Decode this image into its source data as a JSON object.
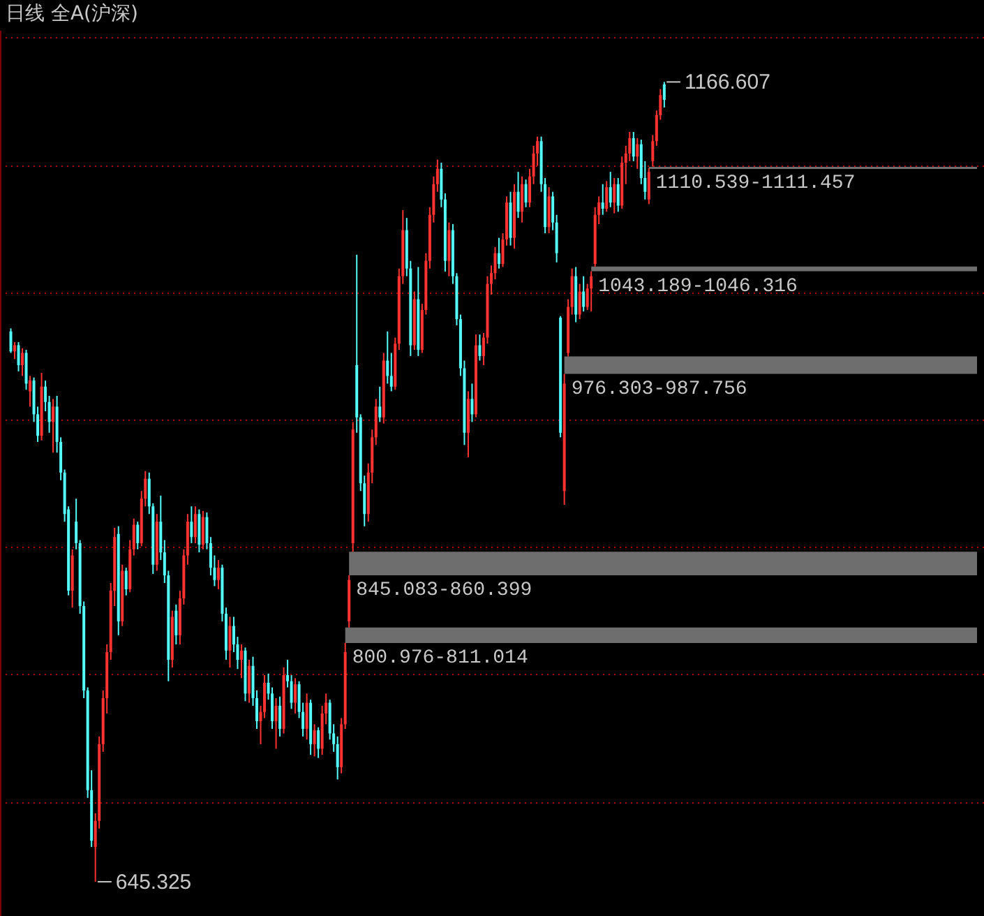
{
  "chart_data": {
    "type": "candlestick",
    "title": "日线 全A(沪深)",
    "categories": [
      null,
      null,
      null,
      null,
      null,
      null,
      null,
      null,
      null,
      null,
      null,
      null,
      null,
      null,
      null,
      null,
      null,
      null,
      null,
      null,
      null,
      null,
      null,
      null,
      null,
      null,
      null,
      null,
      null,
      null,
      null,
      null,
      null,
      null,
      null,
      null,
      null,
      null,
      null,
      null,
      null,
      null,
      null,
      null,
      null,
      null,
      null,
      null,
      null,
      null,
      null,
      null,
      null,
      null,
      null,
      null,
      null,
      null,
      null,
      null,
      null,
      null,
      null,
      null,
      null,
      null,
      null,
      null,
      null,
      null,
      null,
      null,
      null,
      null,
      null,
      null,
      null,
      null,
      null,
      null,
      null,
      null,
      null,
      null,
      null,
      null,
      null,
      null,
      null,
      null,
      null,
      null,
      null,
      null,
      null,
      null,
      null,
      null,
      null,
      null,
      null,
      null,
      null,
      null,
      null,
      null,
      null,
      null,
      null,
      null,
      null,
      null,
      null,
      null,
      null,
      null,
      null,
      null,
      null,
      null,
      null,
      null,
      null,
      null,
      null,
      null,
      null,
      null,
      null,
      null,
      null,
      null,
      null,
      null,
      null,
      null,
      null,
      null,
      null,
      null,
      null,
      null,
      null,
      null,
      null,
      null,
      null,
      null,
      null,
      null,
      null,
      null,
      null,
      null,
      null,
      null,
      null,
      null,
      null,
      null,
      null,
      null,
      null,
      null,
      null,
      null,
      null,
      null,
      null,
      null,
      null
    ],
    "ohlc": [
      [
        1004,
        1006,
        990,
        991
      ],
      [
        991,
        997,
        986,
        995
      ],
      [
        995,
        997,
        978,
        982
      ],
      [
        982,
        993,
        975,
        990
      ],
      [
        990,
        992,
        966,
        970
      ],
      [
        965,
        975,
        955,
        972
      ],
      [
        972,
        974,
        945,
        950
      ],
      [
        950,
        955,
        932,
        936
      ],
      [
        936,
        977,
        933,
        968
      ],
      [
        968,
        972,
        952,
        958
      ],
      [
        958,
        962,
        938,
        945
      ],
      [
        945,
        960,
        925,
        955
      ],
      [
        955,
        962,
        925,
        932
      ],
      [
        932,
        935,
        907,
        912
      ],
      [
        912,
        914,
        880,
        885
      ],
      [
        888,
        890,
        832,
        835
      ],
      [
        835,
        862,
        824,
        858
      ],
      [
        880,
        895,
        862,
        866
      ],
      [
        866,
        868,
        820,
        825
      ],
      [
        825,
        828,
        765,
        770
      ],
      [
        770,
        772,
        700,
        705
      ],
      [
        705,
        718,
        668,
        672
      ],
      [
        668,
        690,
        645.325,
        685
      ],
      [
        685,
        740,
        680,
        735
      ],
      [
        735,
        770,
        730,
        765
      ],
      [
        765,
        800,
        755,
        795
      ],
      [
        795,
        840,
        790,
        835
      ],
      [
        835,
        876,
        825,
        870
      ],
      [
        872,
        877,
        806,
        815
      ],
      [
        815,
        852,
        812,
        848
      ],
      [
        848,
        850,
        832,
        836
      ],
      [
        836,
        868,
        834,
        862
      ],
      [
        862,
        882,
        858,
        878
      ],
      [
        878,
        880,
        862,
        866
      ],
      [
        866,
        900,
        864,
        895
      ],
      [
        895,
        913,
        890,
        908
      ],
      [
        908,
        912,
        885,
        890
      ],
      [
        890,
        892,
        846,
        852
      ],
      [
        852,
        885,
        848,
        880
      ],
      [
        880,
        897,
        855,
        860
      ],
      [
        860,
        868,
        840,
        845
      ],
      [
        845,
        848,
        776,
        790
      ],
      [
        790,
        822,
        785,
        818
      ],
      [
        822,
        826,
        800,
        806
      ],
      [
        806,
        835,
        800,
        830
      ],
      [
        830,
        862,
        826,
        858
      ],
      [
        858,
        885,
        852,
        880
      ],
      [
        880,
        890,
        866,
        870
      ],
      [
        870,
        890,
        866,
        885
      ],
      [
        885,
        888,
        860,
        865
      ],
      [
        865,
        887,
        862,
        883
      ],
      [
        883,
        886,
        862,
        866
      ],
      [
        866,
        870,
        845,
        850
      ],
      [
        850,
        858,
        838,
        842
      ],
      [
        842,
        855,
        836,
        850
      ],
      [
        850,
        852,
        815,
        820
      ],
      [
        820,
        824,
        790,
        796
      ],
      [
        796,
        818,
        785,
        812
      ],
      [
        812,
        818,
        795,
        800
      ],
      [
        800,
        805,
        784,
        790
      ],
      [
        790,
        800,
        778,
        796
      ],
      [
        796,
        798,
        763,
        768
      ],
      [
        768,
        790,
        762,
        786
      ],
      [
        786,
        792,
        760,
        765
      ],
      [
        765,
        770,
        745,
        750
      ],
      [
        750,
        760,
        735,
        756
      ],
      [
        756,
        780,
        752,
        775
      ],
      [
        775,
        781,
        764,
        768
      ],
      [
        768,
        772,
        745,
        750
      ],
      [
        750,
        765,
        732,
        760
      ],
      [
        760,
        766,
        740,
        745
      ],
      [
        745,
        785,
        742,
        780
      ],
      [
        780,
        790,
        772,
        776
      ],
      [
        776,
        780,
        758,
        762
      ],
      [
        762,
        778,
        755,
        774
      ],
      [
        774,
        776,
        752,
        756
      ],
      [
        756,
        762,
        740,
        745
      ],
      [
        745,
        768,
        738,
        762
      ],
      [
        762,
        764,
        728,
        735
      ],
      [
        735,
        748,
        727,
        744
      ],
      [
        744,
        746,
        726,
        732
      ],
      [
        732,
        760,
        728,
        755
      ],
      [
        755,
        768,
        748,
        762
      ],
      [
        762,
        764,
        738,
        742
      ],
      [
        742,
        748,
        730,
        735
      ],
      [
        735,
        740,
        712,
        720
      ],
      [
        720,
        752,
        716,
        748
      ],
      [
        748,
        800.976,
        745,
        795
      ],
      [
        815,
        845.083,
        811.014,
        842
      ],
      [
        866,
        945,
        860.399,
        940
      ],
      [
        982,
        1054,
        938,
        948
      ],
      [
        948,
        950,
        900,
        905
      ],
      [
        905,
        910,
        877,
        885
      ],
      [
        885,
        918,
        880,
        912
      ],
      [
        912,
        940,
        905,
        935
      ],
      [
        935,
        960,
        930,
        955
      ],
      [
        955,
        968,
        945,
        948
      ],
      [
        948,
        990,
        944,
        985
      ],
      [
        985,
        1004,
        970,
        975
      ],
      [
        975,
        990,
        965,
        968
      ],
      [
        968,
        1000,
        966,
        996
      ],
      [
        996,
        1045,
        992,
        1040
      ],
      [
        1040,
        1083,
        1035,
        1070
      ],
      [
        1070,
        1078,
        1040,
        1045
      ],
      [
        1045,
        1050,
        988,
        995
      ],
      [
        995,
        1030,
        992,
        1025
      ],
      [
        1025,
        1046,
        988,
        992
      ],
      [
        992,
        1022,
        990,
        1018
      ],
      [
        1018,
        1055,
        1015,
        1050
      ],
      [
        1050,
        1085,
        1045,
        1080
      ],
      [
        1080,
        1105,
        1075,
        1100
      ],
      [
        1100,
        1116,
        1095,
        1110
      ],
      [
        1110,
        1114,
        1085,
        1090
      ],
      [
        1090,
        1094,
        1043,
        1050
      ],
      [
        1050,
        1075,
        1040,
        1070
      ],
      [
        1070,
        1074,
        1035,
        1040
      ],
      [
        1040,
        1042,
        1008,
        1012
      ],
      [
        1012,
        1015,
        975,
        980
      ],
      [
        980,
        985,
        930,
        938
      ],
      [
        938,
        965,
        922,
        960
      ],
      [
        960,
        970,
        945,
        950
      ],
      [
        950,
        1002,
        948,
        995
      ],
      [
        995,
        1002,
        985,
        988
      ],
      [
        988,
        1003,
        982,
        1000
      ],
      [
        1000,
        1040,
        996,
        1035
      ],
      [
        1035,
        1047,
        1028,
        1042
      ],
      [
        1042,
        1059,
        1038,
        1055
      ],
      [
        1055,
        1065,
        1045,
        1048
      ],
      [
        1048,
        1068,
        1046,
        1064
      ],
      [
        1064,
        1092,
        1060,
        1088
      ],
      [
        1088,
        1095,
        1060,
        1065
      ],
      [
        1065,
        1100,
        1058,
        1095
      ],
      [
        1095,
        1108,
        1078,
        1082
      ],
      [
        1082,
        1105,
        1075,
        1100
      ],
      [
        1100,
        1103,
        1085,
        1088
      ],
      [
        1088,
        1110,
        1085,
        1105
      ],
      [
        1105,
        1125,
        1100,
        1120
      ],
      [
        1120,
        1131,
        1112,
        1128
      ],
      [
        1128,
        1131,
        1095,
        1100
      ],
      [
        1100,
        1104,
        1068,
        1072
      ],
      [
        1072,
        1098,
        1068,
        1092
      ],
      [
        1092,
        1095,
        1070,
        1075
      ],
      [
        1075,
        1080,
        1049,
        1055
      ],
      [
        1013,
        1014,
        935,
        938
      ],
      [
        900,
        976.303,
        891,
        970
      ],
      [
        990,
        1025,
        987.756,
        1020
      ],
      [
        1020,
        1045,
        1015,
        1040
      ],
      [
        1040,
        1046,
        1010,
        1015
      ],
      [
        1015,
        1035,
        1012,
        1030
      ],
      [
        1030,
        1040,
        1017,
        1020
      ],
      [
        1020,
        1035,
        1018,
        1032
      ],
      [
        1032,
        1043.189,
        1017,
        1040
      ],
      [
        1048,
        1085,
        1046.316,
        1080
      ],
      [
        1080,
        1092,
        1074,
        1088
      ],
      [
        1088,
        1100,
        1080,
        1084
      ],
      [
        1084,
        1102,
        1082,
        1098
      ],
      [
        1098,
        1108,
        1085,
        1088
      ],
      [
        1088,
        1104,
        1081,
        1100
      ],
      [
        1100,
        1104,
        1082,
        1086
      ],
      [
        1086,
        1118,
        1084,
        1114
      ],
      [
        1114,
        1125,
        1100,
        1120
      ],
      [
        1120,
        1134,
        1115,
        1130
      ],
      [
        1130,
        1134,
        1115,
        1118
      ],
      [
        1118,
        1130,
        1110,
        1126
      ],
      [
        1126,
        1129,
        1100,
        1104
      ],
      [
        1104,
        1115,
        1090,
        1095
      ],
      [
        1090,
        1110.539,
        1087,
        1108
      ],
      [
        1115,
        1132,
        1111.457,
        1128
      ],
      [
        1128,
        1148,
        1125,
        1145
      ],
      [
        1145,
        1162,
        1142,
        1158
      ],
      [
        1165,
        1166.607,
        1150,
        1155
      ]
    ],
    "colors": [
      "#54fcfc",
      "#ff3232",
      "#54fcfc",
      "#ff3232",
      "#54fcfc",
      "#ff3232",
      "#54fcfc",
      "#54fcfc",
      "#ff3232",
      "#54fcfc",
      "#54fcfc",
      "#ff3232",
      "#54fcfc",
      "#54fcfc",
      "#54fcfc",
      "#54fcfc",
      "#ff3232",
      "#54fcfc",
      "#54fcfc",
      "#54fcfc",
      "#54fcfc",
      "#54fcfc",
      "#ff3232",
      "#ff3232",
      "#ff3232",
      "#ff3232",
      "#ff3232",
      "#ff3232",
      "#54fcfc",
      "#ff3232",
      "#54fcfc",
      "#ff3232",
      "#ff3232",
      "#54fcfc",
      "#ff3232",
      "#ff3232",
      "#54fcfc",
      "#54fcfc",
      "#ff3232",
      "#54fcfc",
      "#54fcfc",
      "#54fcfc",
      "#ff3232",
      "#54fcfc",
      "#ff3232",
      "#ff3232",
      "#ff3232",
      "#54fcfc",
      "#ff3232",
      "#54fcfc",
      "#ff3232",
      "#54fcfc",
      "#54fcfc",
      "#54fcfc",
      "#ff3232",
      "#54fcfc",
      "#54fcfc",
      "#ff3232",
      "#54fcfc",
      "#54fcfc",
      "#ff3232",
      "#54fcfc",
      "#ff3232",
      "#54fcfc",
      "#54fcfc",
      "#ff3232",
      "#ff3232",
      "#54fcfc",
      "#54fcfc",
      "#ff3232",
      "#54fcfc",
      "#ff3232",
      "#54fcfc",
      "#54fcfc",
      "#ff3232",
      "#54fcfc",
      "#54fcfc",
      "#ff3232",
      "#54fcfc",
      "#ff3232",
      "#54fcfc",
      "#ff3232",
      "#ff3232",
      "#54fcfc",
      "#54fcfc",
      "#54fcfc",
      "#ff3232",
      "#ff3232",
      "#ff3232",
      "#ff3232",
      "#54fcfc",
      "#54fcfc",
      "#54fcfc",
      "#ff3232",
      "#ff3232",
      "#ff3232",
      "#54fcfc",
      "#ff3232",
      "#54fcfc",
      "#54fcfc",
      "#ff3232",
      "#ff3232",
      "#ff3232",
      "#54fcfc",
      "#54fcfc",
      "#ff3232",
      "#54fcfc",
      "#ff3232",
      "#ff3232",
      "#ff3232",
      "#ff3232",
      "#ff3232",
      "#54fcfc",
      "#54fcfc",
      "#ff3232",
      "#54fcfc",
      "#54fcfc",
      "#54fcfc",
      "#54fcfc",
      "#ff3232",
      "#54fcfc",
      "#ff3232",
      "#54fcfc",
      "#ff3232",
      "#ff3232",
      "#ff3232",
      "#ff3232",
      "#54fcfc",
      "#ff3232",
      "#ff3232",
      "#54fcfc",
      "#ff3232",
      "#54fcfc",
      "#ff3232",
      "#54fcfc",
      "#ff3232",
      "#ff3232",
      "#ff3232",
      "#54fcfc",
      "#54fcfc",
      "#ff3232",
      "#54fcfc",
      "#54fcfc",
      "#54fcfc",
      "#ff3232",
      "#ff3232",
      "#ff3232",
      "#54fcfc",
      "#ff3232",
      "#54fcfc",
      "#ff3232",
      "#ff3232",
      "#ff3232",
      "#ff3232",
      "#54fcfc",
      "#ff3232",
      "#54fcfc",
      "#ff3232",
      "#54fcfc",
      "#ff3232",
      "#ff3232",
      "#ff3232",
      "#54fcfc",
      "#ff3232",
      "#54fcfc",
      "#54fcfc",
      "#ff3232",
      "#ff3232",
      "#ff3232",
      "#ff3232",
      "#54fcfc"
    ],
    "ylim": [
      623,
      1200
    ],
    "yticks": [
      {
        "value": 697,
        "label": null
      },
      {
        "value": 780,
        "label": null
      },
      {
        "value": 863,
        "label": null
      },
      {
        "value": 946,
        "label": null
      },
      {
        "value": 1029,
        "label": null
      },
      {
        "value": 1112,
        "label": null
      },
      {
        "value": 1195,
        "label": null
      }
    ],
    "ref_lines": [
      {
        "axis": "y",
        "value": 1110.539,
        "label": "1110.539-1111.457",
        "color": "#6e6e6e"
      }
    ],
    "bands": [
      {
        "axis": "y",
        "from": 1043.189,
        "to": 1046.316,
        "label": "1043.189-1046.316",
        "color": "#6e6e6e"
      },
      {
        "axis": "y",
        "from": 976.303,
        "to": 987.756,
        "label": "976.303-987.756",
        "color": "#6e6e6e"
      },
      {
        "axis": "y",
        "from": 845.083,
        "to": 860.399,
        "label": "845.083-860.399",
        "color": "#6e6e6e"
      },
      {
        "axis": "y",
        "from": 800.976,
        "to": 811.014,
        "label": "800.976-811.014",
        "color": "#6e6e6e"
      }
    ],
    "annotations": [
      "1166.607",
      "645.325"
    ],
    "grid": "y",
    "tick_labels": false
  }
}
